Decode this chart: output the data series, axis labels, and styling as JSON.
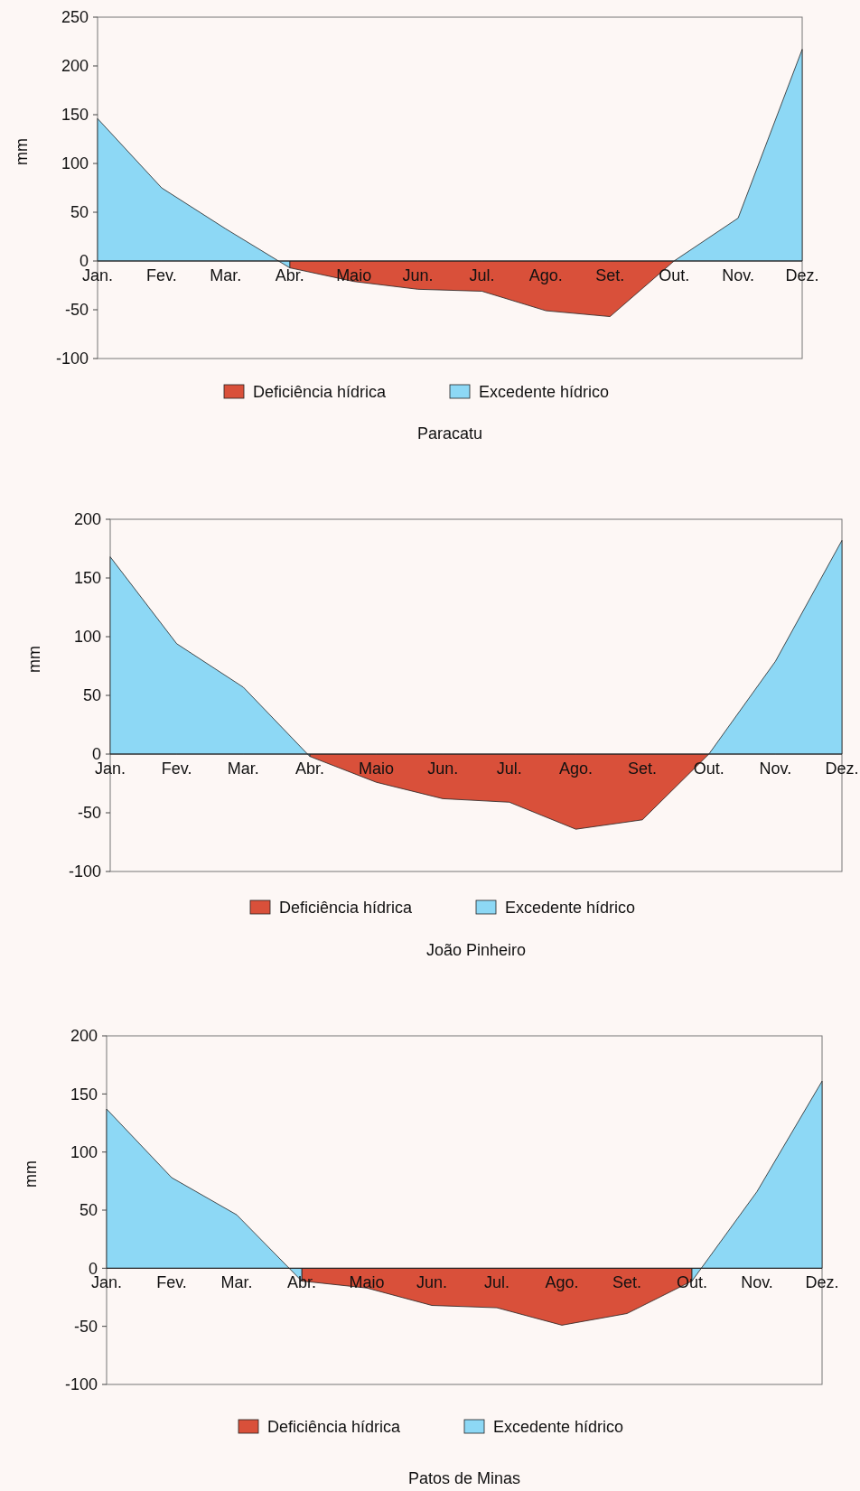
{
  "chart_data": [
    {
      "type": "area",
      "title": "Paracatu",
      "ylabel": "mm",
      "categories": [
        "Jan.",
        "Fev.",
        "Mar.",
        "Abr.",
        "Maio",
        "Jun.",
        "Jul.",
        "Ago.",
        "Set.",
        "Out.",
        "Nov.",
        "Dez."
      ],
      "series": [
        {
          "name": "Deficiência hídrica",
          "color": "#d9503a",
          "values": [
            null,
            null,
            null,
            -7,
            -21,
            -29,
            -31,
            -51,
            -57,
            0,
            null,
            null
          ]
        },
        {
          "name": "Excedente hídrico",
          "color": "#8dd8f5",
          "values": [
            146,
            75,
            33,
            -7,
            null,
            null,
            null,
            null,
            null,
            0,
            44,
            217
          ]
        }
      ],
      "ylim": [
        -100,
        250
      ],
      "yticks": [
        -100,
        -50,
        0,
        50,
        100,
        150,
        200,
        250
      ],
      "legend": "bottom"
    },
    {
      "type": "area",
      "title": "João Pinheiro",
      "ylabel": "mm",
      "categories": [
        "Jan.",
        "Fev.",
        "Mar.",
        "Abr.",
        "Maio",
        "Jun.",
        "Jul.",
        "Ago.",
        "Set.",
        "Out.",
        "Nov.",
        "Dez."
      ],
      "series": [
        {
          "name": "Deficiência hídrica",
          "color": "#d9503a",
          "values": [
            null,
            null,
            null,
            -2,
            -24,
            -38,
            -41,
            -64,
            -56,
            0,
            null,
            null
          ]
        },
        {
          "name": "Excedente hídrico",
          "color": "#8dd8f5",
          "values": [
            168,
            94,
            57,
            -2,
            null,
            null,
            null,
            null,
            null,
            0,
            79,
            182
          ]
        }
      ],
      "ylim": [
        -100,
        200
      ],
      "yticks": [
        -100,
        -50,
        0,
        50,
        100,
        150,
        200
      ],
      "legend": "bottom"
    },
    {
      "type": "area",
      "title": "Patos de Minas",
      "ylabel": "mm",
      "categories": [
        "Jan.",
        "Fev.",
        "Mar.",
        "Abr.",
        "Maio",
        "Jun.",
        "Jul.",
        "Ago.",
        "Set.",
        "Out.",
        "Nov.",
        "Dez."
      ],
      "series": [
        {
          "name": "Deficiência hídrica",
          "color": "#d9503a",
          "values": [
            null,
            null,
            null,
            -11,
            -17,
            -32,
            -34,
            -49,
            -39,
            -11,
            null,
            null
          ]
        },
        {
          "name": "Excedente hídrico",
          "color": "#8dd8f5",
          "values": [
            137,
            78,
            46,
            -11,
            null,
            null,
            null,
            null,
            null,
            -11,
            66,
            161
          ]
        }
      ],
      "ylim": [
        -100,
        200
      ],
      "yticks": [
        -100,
        -50,
        0,
        50,
        100,
        150,
        200
      ],
      "legend": "bottom"
    }
  ]
}
